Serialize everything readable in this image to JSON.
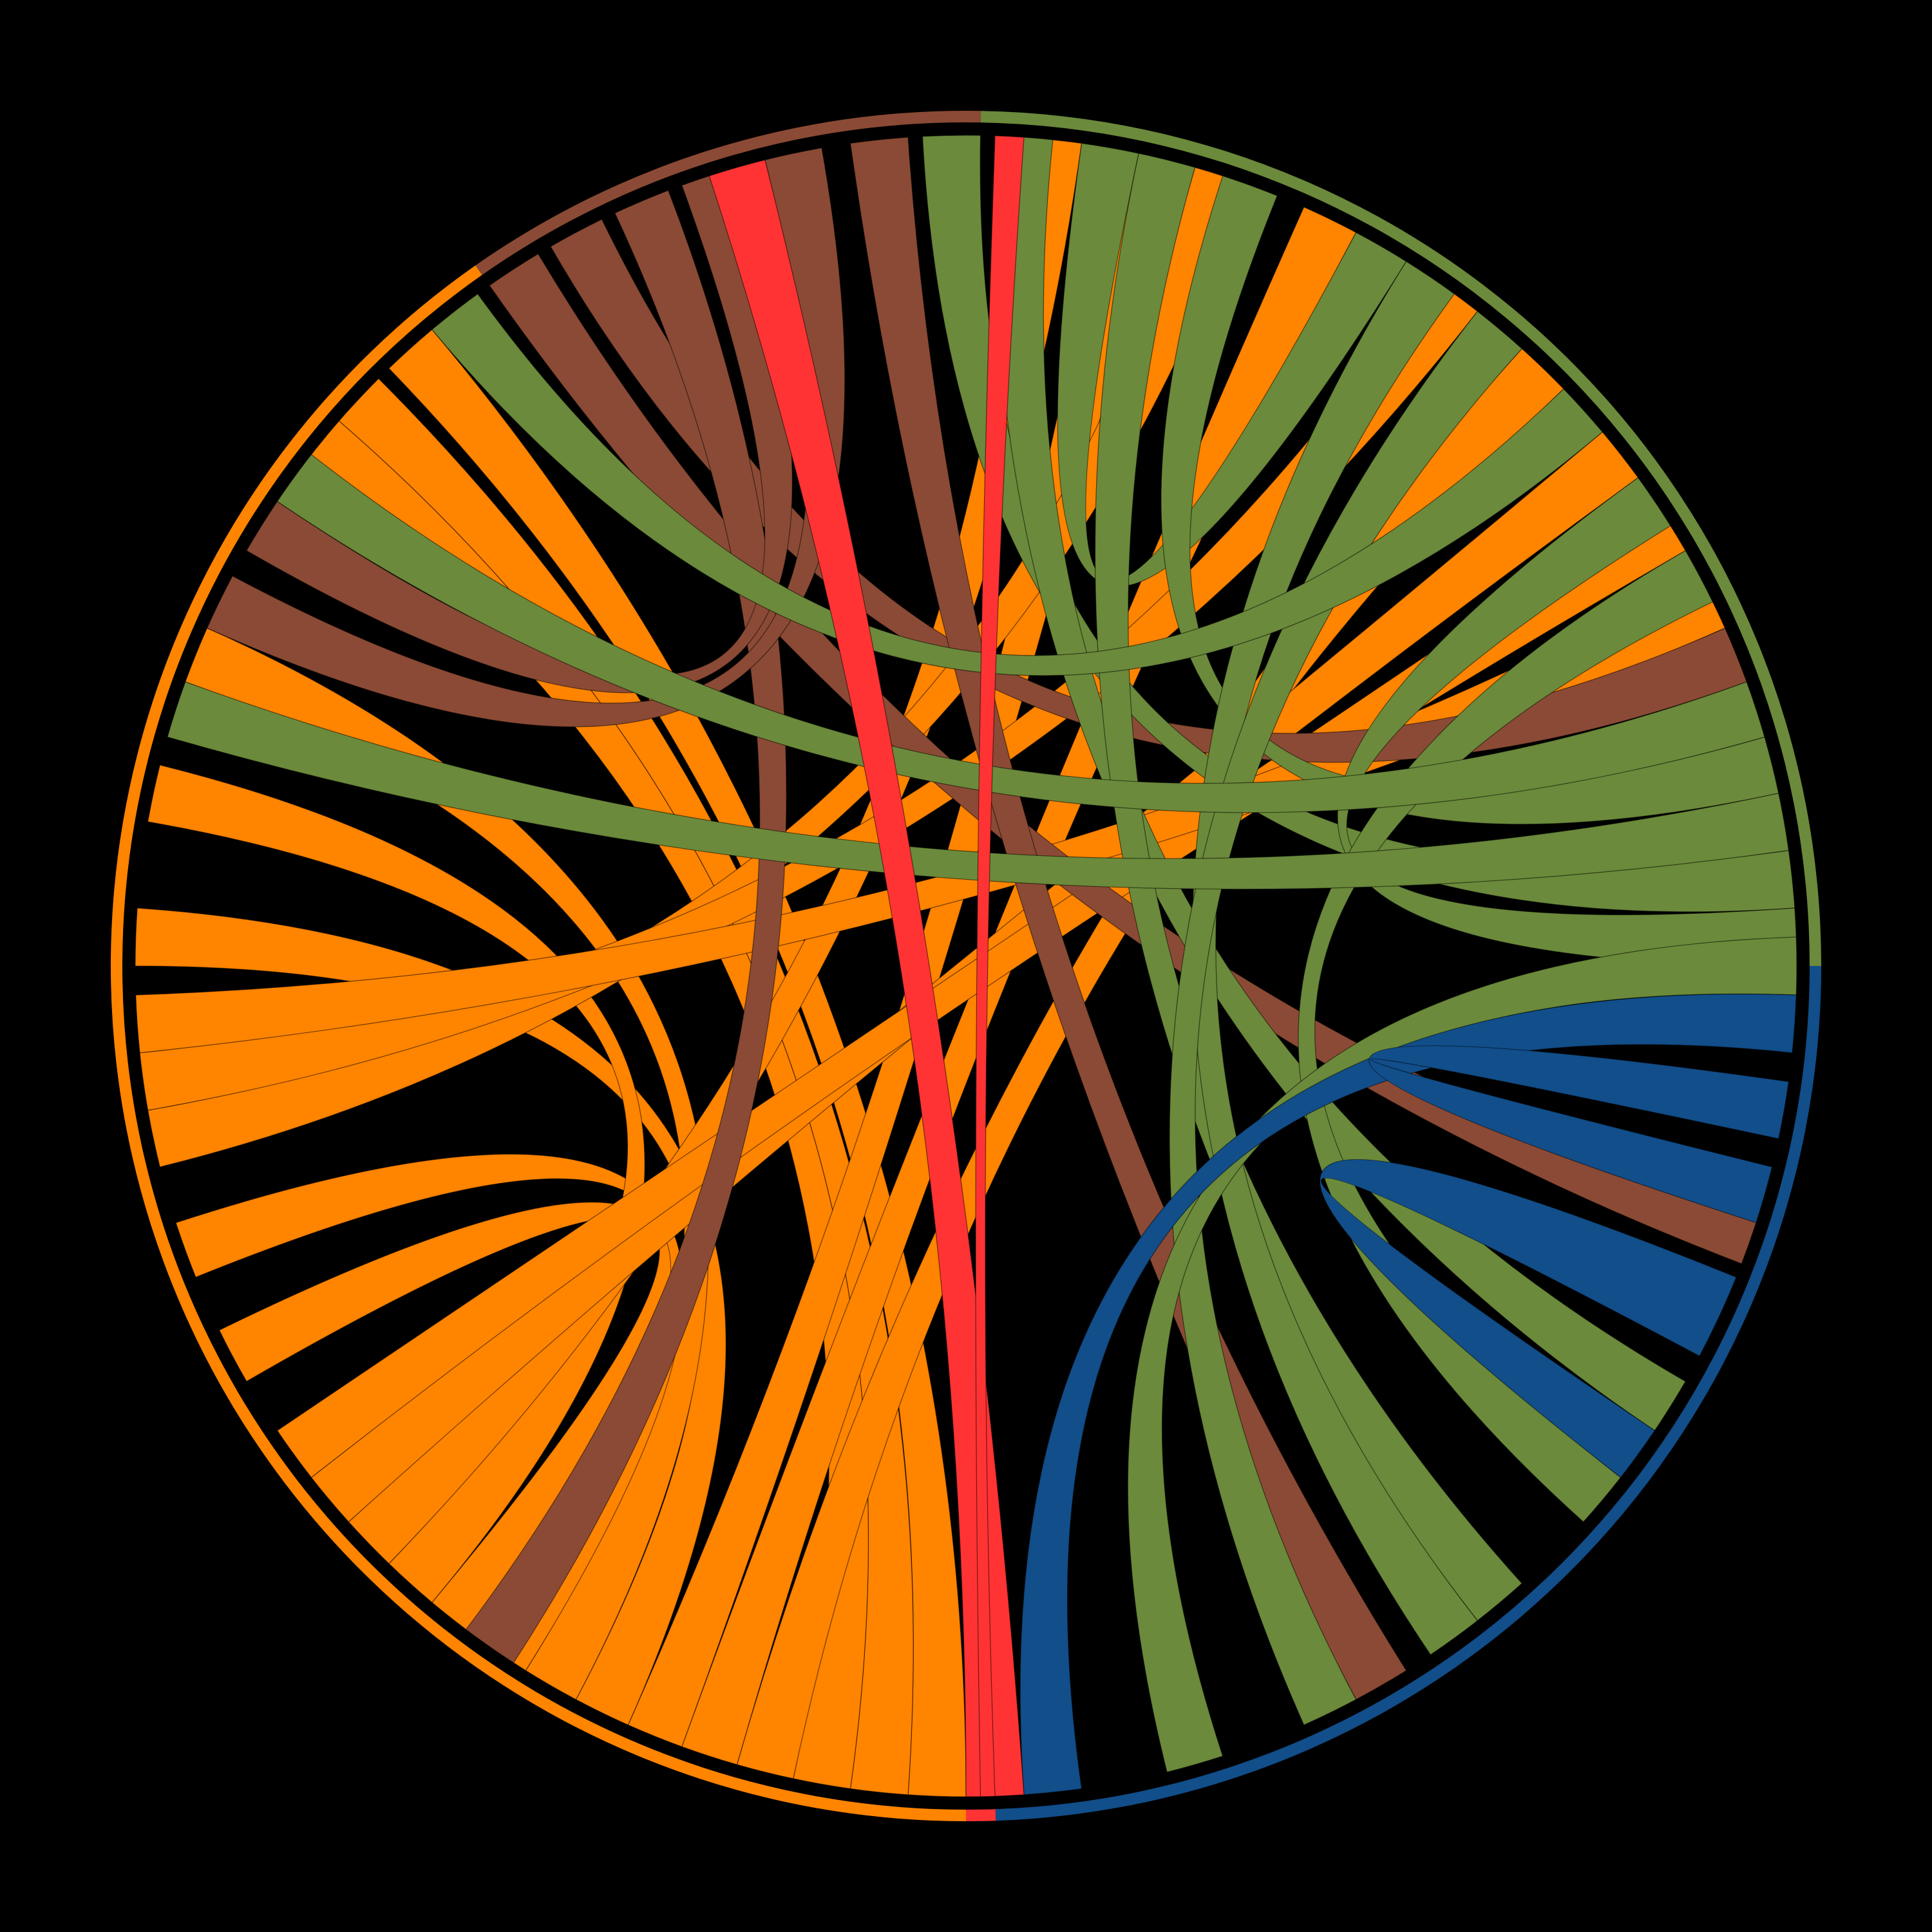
{
  "chart_data": {
    "type": "chord",
    "title": "",
    "legend": "none",
    "background": "#000000",
    "groups": [
      {
        "id": "orange",
        "color": "#FF8400",
        "start_deg": 0,
        "end_deg": 145
      },
      {
        "id": "brown",
        "color": "#8B4A35",
        "start_deg": 145,
        "end_deg": 181
      },
      {
        "id": "green",
        "color": "#6B8A3B",
        "start_deg": 181,
        "end_deg": 270
      },
      {
        "id": "blue",
        "color": "#114E8A",
        "start_deg": 270,
        "end_deg": 358
      },
      {
        "id": "red",
        "color": "#FF3333",
        "start_deg": 358,
        "end_deg": 360
      }
    ],
    "ribbons": [
      {
        "color": "#FF8400",
        "a": [
          0,
          4
        ],
        "b": [
          136,
          140
        ]
      },
      {
        "color": "#FF8400",
        "a": [
          4,
          8
        ],
        "b": [
          131,
          135
        ]
      },
      {
        "color": "#FF8400",
        "a": [
          8,
          12
        ],
        "b": [
          127,
          131
        ]
      },
      {
        "color": "#FF8400",
        "a": [
          12,
          16
        ],
        "b": [
          222,
          226
        ]
      },
      {
        "color": "#FF8400",
        "a": [
          16,
          20
        ],
        "b": [
          204,
          208
        ]
      },
      {
        "color": "#FF8400",
        "a": [
          20,
          24
        ],
        "b": [
          190,
          194
        ]
      },
      {
        "color": "#FF8400",
        "a": [
          24,
          28
        ],
        "b": [
          90,
          94
        ]
      },
      {
        "color": "#FF8400",
        "a": [
          28,
          32
        ],
        "b": [
          110,
          114
        ]
      },
      {
        "color": "#FF8400",
        "a": [
          32,
          36
        ],
        "b": [
          68,
          72
        ]
      },
      {
        "color": "#FF8400",
        "a": [
          36,
          40
        ],
        "b": [
          60,
          64
        ]
      },
      {
        "color": "#FF8400",
        "a": [
          40,
          44
        ],
        "b": [
          100,
          104
        ]
      },
      {
        "color": "#FF8400",
        "a": [
          44,
          48
        ],
        "b": [
          184,
          188
        ]
      },
      {
        "color": "#FF8400",
        "a": [
          48,
          52
        ],
        "b": [
          230,
          234
        ]
      },
      {
        "color": "#FF8400",
        "a": [
          52,
          56
        ],
        "b": [
          236,
          240
        ]
      },
      {
        "color": "#FF8400",
        "a": [
          76,
          80
        ],
        "b": [
          196,
          200
        ]
      },
      {
        "color": "#FF8400",
        "a": [
          80,
          84
        ],
        "b": [
          214,
          218
        ]
      },
      {
        "color": "#FF8400",
        "a": [
          84,
          88
        ],
        "b": [
          242,
          246
        ]
      },
      {
        "color": "#8B4A35",
        "a": [
          145,
          149
        ],
        "b": [
          287,
          291
        ]
      },
      {
        "color": "#8B4A35",
        "a": [
          150,
          154
        ],
        "b": [
          246,
          250
        ]
      },
      {
        "color": "#8B4A35",
        "a": [
          155,
          159
        ],
        "b": [
          33,
          37
        ]
      },
      {
        "color": "#8B4A35",
        "a": [
          160,
          164
        ],
        "b": [
          120,
          124
        ]
      },
      {
        "color": "#8B4A35",
        "a": [
          166,
          170
        ],
        "b": [
          114,
          118
        ]
      },
      {
        "color": "#8B4A35",
        "a": [
          172,
          176
        ],
        "b": [
          328,
          332
        ]
      },
      {
        "color": "#6B8A3B",
        "a": [
          177,
          181
        ],
        "b": [
          262,
          266
        ]
      },
      {
        "color": "#6B8A3B",
        "a": [
          182,
          186
        ],
        "b": [
          300,
          304
        ]
      },
      {
        "color": "#6B8A3B",
        "a": [
          188,
          192
        ],
        "b": [
          208,
          212
        ]
      },
      {
        "color": "#6B8A3B",
        "a": [
          192,
          196
        ],
        "b": [
          318,
          322
        ]
      },
      {
        "color": "#6B8A3B",
        "a": [
          198,
          202
        ],
        "b": [
          254,
          258
        ]
      },
      {
        "color": "#6B8A3B",
        "a": [
          212,
          216
        ],
        "b": [
          322,
          326
        ]
      },
      {
        "color": "#6B8A3B",
        "a": [
          218,
          222
        ],
        "b": [
          332,
          336
        ]
      },
      {
        "color": "#6B8A3B",
        "a": [
          226,
          230
        ],
        "b": [
          140,
          144
        ]
      },
      {
        "color": "#6B8A3B",
        "a": [
          234,
          238
        ],
        "b": [
          266,
          270
        ]
      },
      {
        "color": "#6B8A3B",
        "a": [
          240,
          244
        ],
        "b": [
          308,
          312
        ]
      },
      {
        "color": "#6B8A3B",
        "a": [
          250,
          254
        ],
        "b": [
          124,
          128
        ]
      },
      {
        "color": "#6B8A3B",
        "a": [
          258,
          262
        ],
        "b": [
          106,
          110
        ]
      },
      {
        "color": "#6B8A3B",
        "a": [
          268,
          272
        ],
        "b": [
          342,
          346
        ]
      },
      {
        "color": "#114E8A",
        "a": [
          272,
          276
        ],
        "b": [
          352,
          356
        ]
      },
      {
        "color": "#114E8A",
        "a": [
          278,
          282
        ],
        "b": [
          284,
          288
        ]
      },
      {
        "color": "#114E8A",
        "a": [
          292,
          298
        ],
        "b": [
          304,
          308
        ]
      },
      {
        "color": "#FF3333",
        "a": [
          356,
          360
        ],
        "b": [
          162,
          166
        ]
      },
      {
        "color": "#FF3333",
        "a": [
          182,
          184
        ],
        "b": [
          358,
          359
        ]
      }
    ]
  }
}
